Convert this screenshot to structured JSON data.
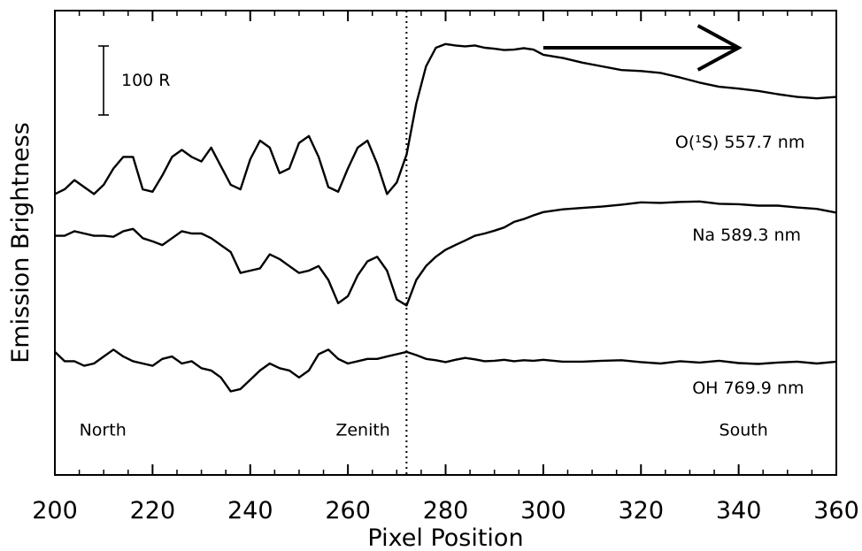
{
  "chart_data": {
    "type": "line",
    "xlabel": "Pixel Position",
    "ylabel": "Emission Brightness",
    "xlim": [
      200,
      360
    ],
    "ylim": [
      0,
      100
    ],
    "xticks": [
      "200",
      "220",
      "240",
      "260",
      "280",
      "300",
      "320",
      "340",
      "360"
    ],
    "grid": false,
    "zenith_x": 272,
    "scale_bar": {
      "label": "100 R"
    },
    "arrow": {
      "x_from": 300,
      "x_to": 340,
      "y": 92
    },
    "annotations": [
      {
        "text": "North",
        "x": 205,
        "y": 8.5
      },
      {
        "text": "Zenith",
        "x": 257.5,
        "y": 8.5
      },
      {
        "text": "South",
        "x": 336,
        "y": 8.5
      }
    ],
    "series": [
      {
        "label": "O(¹S) 557.7 nm",
        "label_x": 327,
        "label_y": 70.5,
        "x": [
          200,
          202,
          204,
          206,
          208,
          210,
          212,
          214,
          216,
          218,
          220,
          222,
          224,
          226,
          228,
          230,
          232,
          234,
          236,
          238,
          240,
          242,
          244,
          246,
          248,
          250,
          252,
          254,
          256,
          258,
          260,
          262,
          264,
          266,
          268,
          270,
          272,
          274,
          276,
          278,
          280,
          282,
          284,
          286,
          288,
          290,
          292,
          294,
          296,
          298,
          300,
          304,
          308,
          312,
          316,
          320,
          324,
          328,
          332,
          336,
          340,
          344,
          348,
          352,
          356,
          360
        ],
        "y": [
          60.5,
          61.5,
          63.5,
          62.0,
          60.5,
          62.5,
          66.0,
          68.5,
          68.5,
          61.5,
          61.0,
          64.5,
          68.5,
          70.0,
          68.5,
          67.5,
          70.5,
          66.5,
          62.5,
          61.5,
          68.0,
          72.0,
          70.5,
          65.0,
          66.0,
          71.5,
          73.0,
          68.5,
          62.0,
          61.0,
          66.0,
          70.5,
          72.0,
          67.0,
          60.5,
          63.0,
          69.0,
          80.0,
          88.0,
          92.0,
          92.8,
          92.5,
          92.3,
          92.5,
          92.0,
          91.8,
          91.5,
          91.6,
          91.9,
          91.6,
          90.5,
          89.8,
          88.8,
          88.0,
          87.2,
          87.0,
          86.6,
          85.6,
          84.5,
          83.6,
          83.2,
          82.7,
          82.0,
          81.4,
          81.1,
          81.4
        ]
      },
      {
        "label": "Na 589.3 nm",
        "label_x": 330.5,
        "label_y": 50.5,
        "x": [
          200,
          202,
          204,
          206,
          208,
          210,
          212,
          214,
          216,
          218,
          220,
          222,
          224,
          226,
          228,
          230,
          232,
          234,
          236,
          238,
          240,
          242,
          244,
          246,
          248,
          250,
          252,
          254,
          256,
          258,
          260,
          262,
          264,
          266,
          268,
          270,
          272,
          274,
          276,
          278,
          280,
          282,
          284,
          286,
          288,
          290,
          292,
          294,
          296,
          298,
          300,
          304,
          308,
          312,
          316,
          320,
          324,
          328,
          332,
          336,
          340,
          344,
          348,
          352,
          356,
          360
        ],
        "y": [
          51.5,
          51.5,
          52.5,
          52.0,
          51.5,
          51.5,
          51.3,
          52.5,
          53.0,
          51.0,
          50.3,
          49.5,
          51.0,
          52.5,
          52.0,
          52.0,
          51.0,
          49.5,
          48.0,
          43.5,
          44.0,
          44.5,
          47.5,
          46.5,
          45.0,
          43.5,
          44.0,
          45.0,
          42.0,
          37.0,
          38.5,
          43.0,
          46.0,
          47.0,
          44.0,
          37.8,
          36.5,
          42.0,
          45.0,
          47.0,
          48.5,
          49.5,
          50.5,
          51.5,
          52.0,
          52.6,
          53.3,
          54.5,
          55.1,
          55.9,
          56.6,
          57.2,
          57.5,
          57.8,
          58.2,
          58.7,
          58.6,
          58.8,
          58.9,
          58.4,
          58.3,
          58.0,
          58.0,
          57.6,
          57.3,
          56.5
        ]
      },
      {
        "label": "OH 769.9 nm",
        "label_x": 330.5,
        "label_y": 17.5,
        "x": [
          200,
          202,
          204,
          206,
          208,
          210,
          212,
          214,
          216,
          218,
          220,
          222,
          224,
          226,
          228,
          230,
          232,
          234,
          236,
          238,
          240,
          242,
          244,
          246,
          248,
          250,
          252,
          254,
          256,
          258,
          260,
          262,
          264,
          266,
          268,
          270,
          272,
          274,
          276,
          278,
          280,
          282,
          284,
          286,
          288,
          290,
          292,
          294,
          296,
          298,
          300,
          304,
          308,
          312,
          316,
          320,
          324,
          328,
          332,
          336,
          340,
          344,
          348,
          352,
          356,
          360
        ],
        "y": [
          26.5,
          24.5,
          24.5,
          23.5,
          24.0,
          25.5,
          27.0,
          25.5,
          24.5,
          24.0,
          23.5,
          25.0,
          25.5,
          24.0,
          24.5,
          23.0,
          22.5,
          21.0,
          18.0,
          18.5,
          20.5,
          22.5,
          24.0,
          23.0,
          22.5,
          21.0,
          22.5,
          26.0,
          27.0,
          25.0,
          24.0,
          24.5,
          25.0,
          25.0,
          25.5,
          26.0,
          26.5,
          25.8,
          25.0,
          24.7,
          24.3,
          24.8,
          25.2,
          24.9,
          24.5,
          24.6,
          24.8,
          24.5,
          24.7,
          24.6,
          24.8,
          24.4,
          24.4,
          24.6,
          24.7,
          24.3,
          24.0,
          24.5,
          24.2,
          24.6,
          24.1,
          23.9,
          24.2,
          24.4,
          24.0,
          24.4
        ]
      }
    ]
  }
}
